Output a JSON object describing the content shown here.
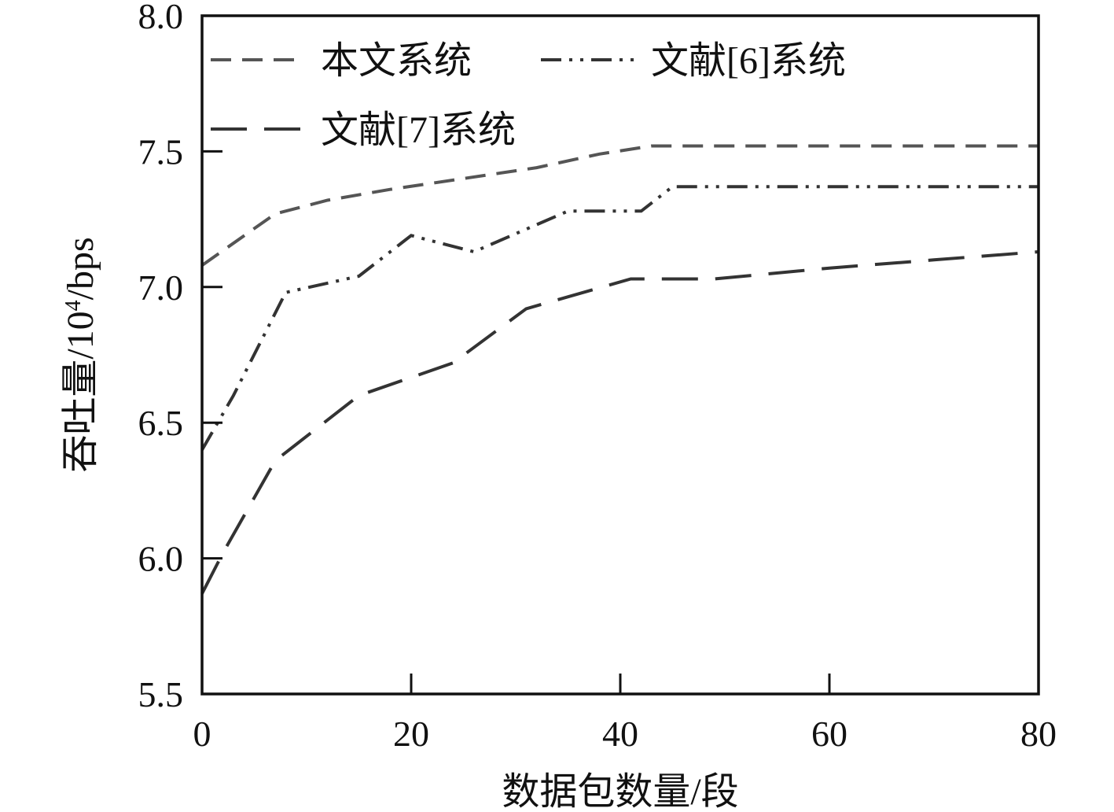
{
  "chart_data": {
    "type": "line",
    "title": "",
    "xlabel": "数据包数量/段",
    "ylabel_main": "吞吐量/10",
    "ylabel_sup": "4",
    "ylabel_tail": "/bps",
    "xlim": [
      0,
      80
    ],
    "ylim": [
      5.5,
      8.0
    ],
    "x_ticks": [
      0,
      20,
      40,
      60,
      80
    ],
    "x_tick_labels": [
      "0",
      "20",
      "40",
      "60",
      "80"
    ],
    "y_ticks": [
      5.5,
      6.0,
      6.5,
      7.0,
      7.5,
      8.0
    ],
    "y_tick_labels": [
      "5.5",
      "6.0",
      "6.5",
      "7.0",
      "7.5",
      "8.0"
    ],
    "grid": false,
    "legend_position": "top-left",
    "series": [
      {
        "name": "本文系统",
        "color": "#555555",
        "dash": "dashed",
        "x": [
          0,
          7,
          12,
          18,
          25,
          32,
          38,
          43,
          50,
          60,
          70,
          80
        ],
        "y": [
          7.08,
          7.27,
          7.32,
          7.36,
          7.4,
          7.44,
          7.49,
          7.52,
          7.52,
          7.52,
          7.52,
          7.52
        ]
      },
      {
        "name": "文献[6]系统",
        "color": "#333333",
        "dash": "dash-dot-dot",
        "x": [
          0,
          3,
          8,
          15,
          20,
          26,
          35,
          42,
          45,
          55,
          65,
          80
        ],
        "y": [
          6.4,
          6.6,
          6.98,
          7.04,
          7.19,
          7.13,
          7.28,
          7.28,
          7.37,
          7.37,
          7.37,
          7.37
        ]
      },
      {
        "name": "文献[7]系统",
        "color": "#333333",
        "dash": "long-dash",
        "x": [
          0,
          2,
          7,
          15,
          24,
          31,
          41,
          49,
          60,
          70,
          80
        ],
        "y": [
          5.87,
          6.02,
          6.36,
          6.6,
          6.72,
          6.92,
          7.03,
          7.03,
          7.07,
          7.1,
          7.13
        ]
      }
    ]
  }
}
